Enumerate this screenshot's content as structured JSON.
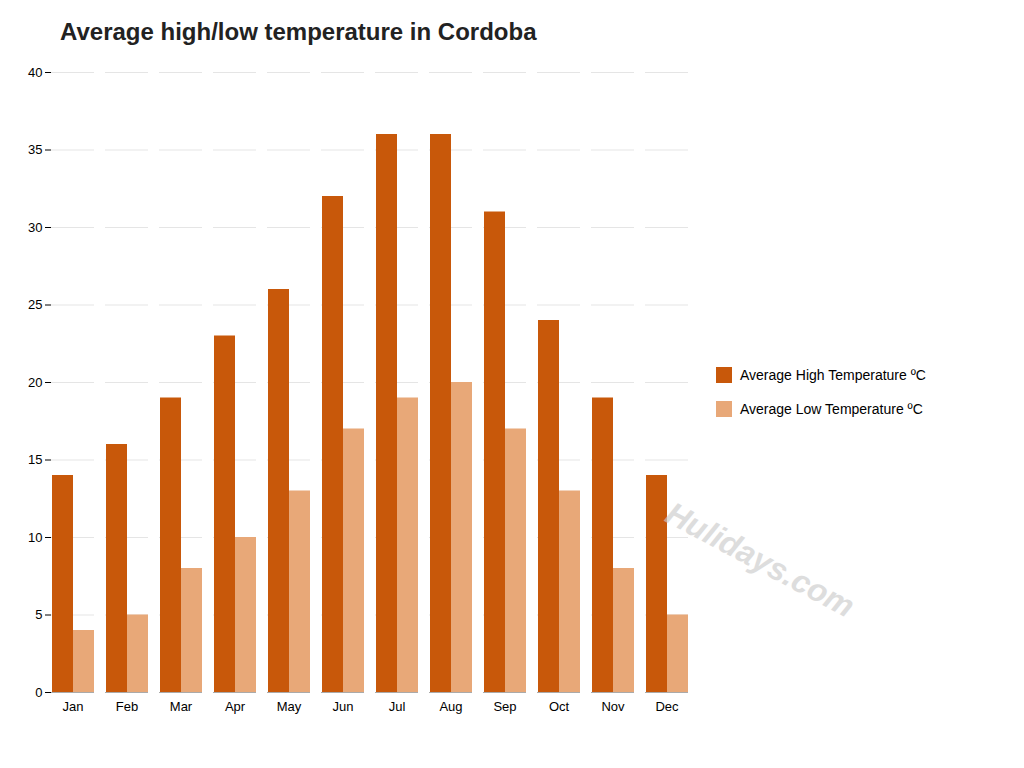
{
  "chart_data": {
    "type": "bar",
    "title": "Average high/low temperature in Cordoba",
    "categories": [
      "Jan",
      "Feb",
      "Mar",
      "Apr",
      "May",
      "Jun",
      "Jul",
      "Aug",
      "Sep",
      "Oct",
      "Nov",
      "Dec"
    ],
    "series": [
      {
        "name": "Average High Temperature ºC",
        "color": "#C8580A",
        "values": [
          14,
          16,
          19,
          23,
          26,
          32,
          36,
          36,
          31,
          24,
          19,
          14
        ]
      },
      {
        "name": "Average Low Temperature ºC",
        "color": "#E8A878",
        "values": [
          4,
          5,
          8,
          10,
          13,
          17,
          19,
          20,
          17,
          13,
          8,
          5
        ]
      }
    ],
    "ylim": [
      0,
      40
    ],
    "yticks": [
      0,
      5,
      10,
      15,
      20,
      25,
      30,
      35,
      40
    ],
    "grid": true,
    "legend": "right",
    "annotations": [
      "Hulidays.com"
    ]
  }
}
